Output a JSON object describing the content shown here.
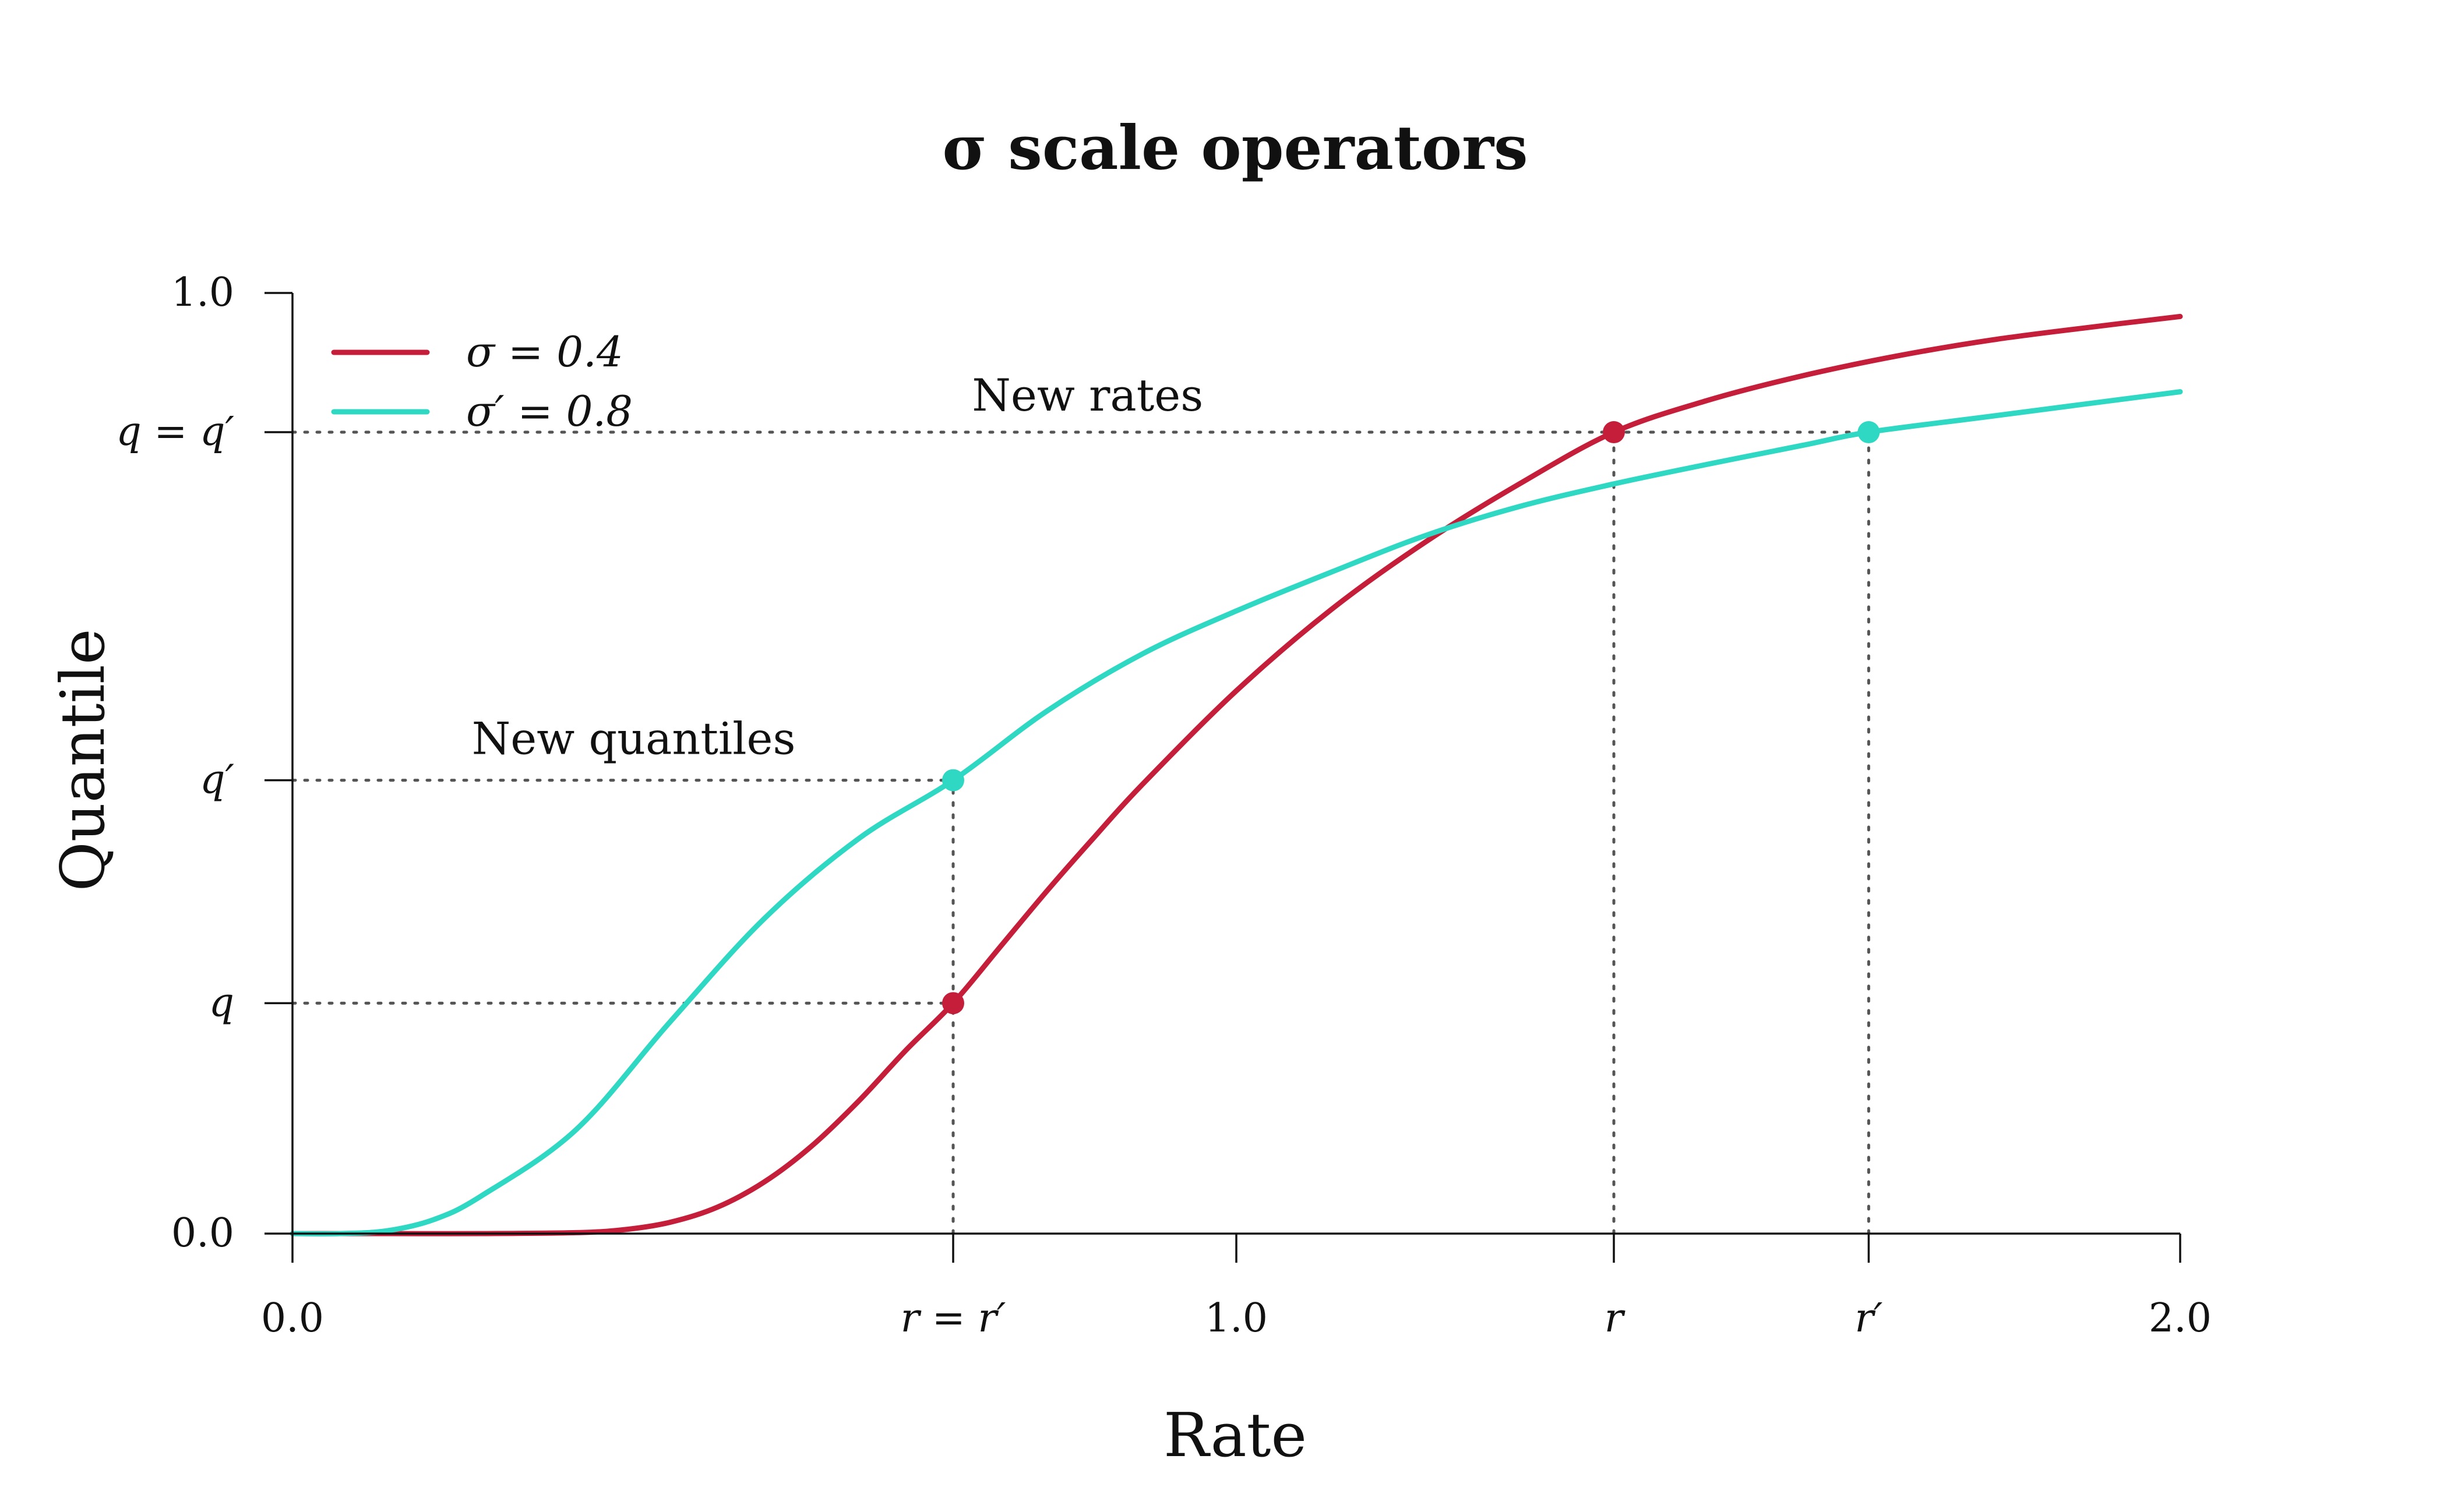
{
  "chart_data": {
    "type": "line",
    "title": "σ scale operators",
    "xlabel": "Rate",
    "ylabel": "Quantile",
    "xlim": [
      0,
      2
    ],
    "ylim": [
      0,
      1
    ],
    "grid": false,
    "legend_position": "top-left",
    "x_tick_labels": [
      {
        "x": 0.0,
        "label": "0.0"
      },
      {
        "x": 0.7,
        "label": "r = r′"
      },
      {
        "x": 1.0,
        "label": "1.0"
      },
      {
        "x": 1.4,
        "label": "r"
      },
      {
        "x": 1.67,
        "label": "r′"
      },
      {
        "x": 2.0,
        "label": "2.0"
      }
    ],
    "y_tick_labels": [
      {
        "y": 0.0,
        "label": "0.0"
      },
      {
        "y": 0.245,
        "label": "q"
      },
      {
        "y": 0.482,
        "label": "q′"
      },
      {
        "y": 0.852,
        "label": "q = q′"
      },
      {
        "y": 1.0,
        "label": "1.0"
      }
    ],
    "series": [
      {
        "name": "σ = 0.4",
        "color": "#c41e3a",
        "x": [
          0.0,
          0.1,
          0.2,
          0.3,
          0.35,
          0.4,
          0.45,
          0.5,
          0.55,
          0.6,
          0.65,
          0.7,
          0.75,
          0.8,
          0.85,
          0.9,
          1.0,
          1.1,
          1.2,
          1.3,
          1.4,
          1.5,
          1.6,
          1.7,
          1.8,
          1.9,
          2.0
        ],
        "values": [
          0.0,
          0.0,
          0.0,
          0.001,
          0.004,
          0.012,
          0.028,
          0.055,
          0.093,
          0.141,
          0.195,
          0.245,
          0.305,
          0.365,
          0.422,
          0.477,
          0.577,
          0.663,
          0.735,
          0.797,
          0.852,
          0.886,
          0.912,
          0.933,
          0.95,
          0.963,
          0.975
        ]
      },
      {
        "name": "σ′ = 0.8",
        "color": "#2ed8c3",
        "x": [
          0.0,
          0.05,
          0.1,
          0.15,
          0.2,
          0.3,
          0.4,
          0.5,
          0.6,
          0.7,
          0.8,
          0.9,
          1.0,
          1.1,
          1.2,
          1.3,
          1.4,
          1.5,
          1.6,
          1.67,
          1.8,
          2.0
        ],
        "values": [
          0.0,
          0.0,
          0.003,
          0.015,
          0.04,
          0.11,
          0.225,
          0.335,
          0.42,
          0.482,
          0.556,
          0.616,
          0.662,
          0.703,
          0.742,
          0.773,
          0.797,
          0.818,
          0.838,
          0.852,
          0.869,
          0.895
        ]
      }
    ],
    "points": [
      {
        "series": "σ = 0.4",
        "x": 0.7,
        "y": 0.245
      },
      {
        "series": "σ = 0.4",
        "x": 1.4,
        "y": 0.852
      },
      {
        "series": "σ′ = 0.8",
        "x": 0.7,
        "y": 0.482
      },
      {
        "series": "σ′ = 0.8",
        "x": 1.67,
        "y": 0.852
      }
    ],
    "reference_lines": [
      {
        "type": "horizontal",
        "y": 0.245,
        "x_from": 0.0,
        "x_to": 0.7
      },
      {
        "type": "horizontal",
        "y": 0.482,
        "x_from": 0.0,
        "x_to": 0.7
      },
      {
        "type": "horizontal",
        "y": 0.852,
        "x_from": 0.0,
        "x_to": 1.67
      },
      {
        "type": "vertical",
        "x": 0.7,
        "y_from": 0.0,
        "y_to": 0.482
      },
      {
        "type": "vertical",
        "x": 1.4,
        "y_from": 0.0,
        "y_to": 0.852
      },
      {
        "type": "vertical",
        "x": 1.67,
        "y_from": 0.0,
        "y_to": 0.852
      }
    ],
    "annotations": [
      {
        "text": "New quantiles",
        "x": 0.19,
        "y": 0.51
      },
      {
        "text": "New rates",
        "x": 0.72,
        "y": 0.875
      }
    ]
  }
}
